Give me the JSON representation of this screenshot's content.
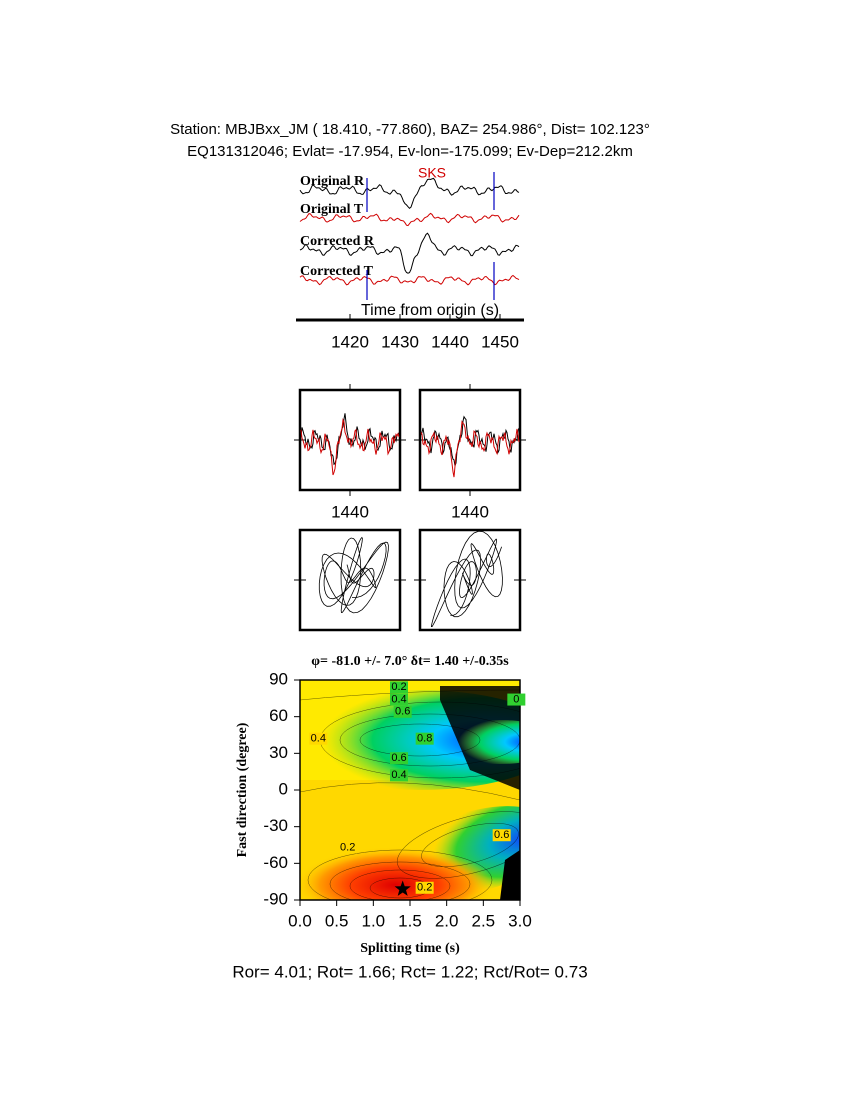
{
  "header": {
    "line1": "Station: MBJBxx_JM (  18.410,  -77.860), BAZ=  254.986°, Dist=  102.123°",
    "line2": "EQ131312046; Evlat= -17.954, Ev-lon=-175.099; Ev-Dep=212.2km"
  },
  "chart_data": [
    {
      "type": "waveform",
      "phase": "SKS",
      "xlabel": "Time from origin (s)",
      "traces": [
        "Original R",
        "Original T",
        "Corrected R",
        "Corrected T"
      ],
      "xlim": [
        1410,
        1454
      ],
      "xticks": [
        1420,
        1430,
        1440,
        1450
      ]
    },
    {
      "type": "window",
      "xlim": [
        1430,
        1450
      ],
      "xticks": [
        1440
      ]
    },
    {
      "type": "contour",
      "title": "φ= -81.0 +/- 7.0° δt= 1.40 +/-0.35s",
      "xlabel": "Splitting time (s)",
      "ylabel": "Fast direction (degree)",
      "xlim": [
        0,
        3
      ],
      "ylim": [
        -90,
        90
      ],
      "xticks": [
        {
          "value": 0,
          "label": "0.0"
        },
        {
          "value": 0.5,
          "label": "0.5"
        },
        {
          "value": 1,
          "label": "1.0"
        },
        {
          "value": 1.5,
          "label": "1.5"
        },
        {
          "value": 2,
          "label": "2.0"
        },
        {
          "value": 2.5,
          "label": "2.5"
        },
        {
          "value": 3,
          "label": "3.0"
        }
      ],
      "yticks": [
        -90,
        -60,
        -30,
        0,
        30,
        60,
        90
      ],
      "best": {
        "dt": 1.4,
        "phi": -81
      },
      "contour_labels": [
        0.2,
        0.4,
        0.6,
        0,
        0.8,
        0.6,
        0.4,
        0.4,
        0.2,
        0.6,
        0.2
      ]
    }
  ],
  "footer": "Ror= 4.01; Rot= 1.66; Rct= 1.22; Rct/Rot= 0.73"
}
